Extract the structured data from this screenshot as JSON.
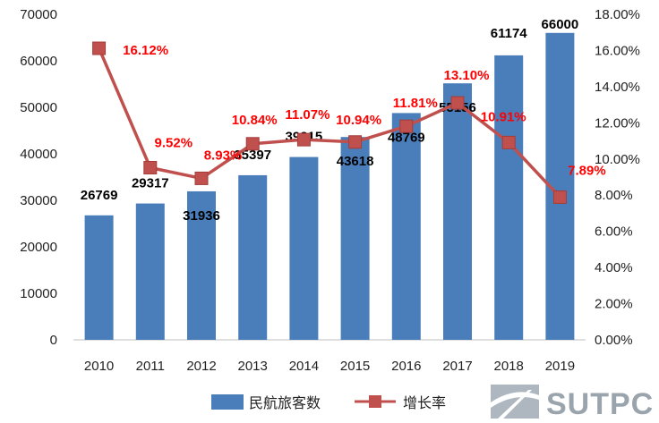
{
  "chart_data": {
    "type": "bar",
    "categories": [
      "2010",
      "2011",
      "2012",
      "2013",
      "2014",
      "2015",
      "2016",
      "2017",
      "2018",
      "2019"
    ],
    "series": [
      {
        "name": "民航旅客数",
        "type": "bar",
        "axis": "left",
        "values": [
          26769,
          29317,
          31936,
          35397,
          39315,
          43618,
          48769,
          55156,
          61174,
          66000
        ],
        "labels": [
          "26769",
          "29317",
          "31936",
          "35397",
          "39315",
          "43618",
          "48769",
          "55156",
          "61174",
          "66000"
        ]
      },
      {
        "name": "增长率",
        "type": "line",
        "axis": "right",
        "values": [
          16.12,
          9.52,
          8.93,
          10.84,
          11.07,
          10.94,
          11.81,
          13.1,
          10.91,
          7.89
        ],
        "labels": [
          "16.12%",
          "9.52%",
          "8.93%",
          "10.84%",
          "11.07%",
          "10.94%",
          "11.81%",
          "13.10%",
          "10.91%",
          "7.89%"
        ]
      }
    ],
    "left_axis": {
      "ylim": [
        0,
        70000
      ],
      "ticks": [
        0,
        10000,
        20000,
        30000,
        40000,
        50000,
        60000,
        70000
      ],
      "tick_labels": [
        "0",
        "10000",
        "20000",
        "30000",
        "40000",
        "50000",
        "60000",
        "70000"
      ]
    },
    "right_axis": {
      "ylim": [
        0,
        18
      ],
      "ticks": [
        0,
        2,
        4,
        6,
        8,
        10,
        12,
        14,
        16,
        18
      ],
      "tick_labels": [
        "0.00%",
        "2.00%",
        "4.00%",
        "6.00%",
        "8.00%",
        "10.00%",
        "12.00%",
        "14.00%",
        "16.00%",
        "18.00%"
      ]
    },
    "grid": false,
    "legend_position": "bottom",
    "colors": {
      "bar": "#4a7ebb",
      "line": "#c0504d",
      "marker": "#c0504d",
      "rate_label": "#ff0000",
      "bar_label": "#000000"
    }
  },
  "watermark": {
    "text": "SUTPC",
    "icon": "sutpc-logo-icon"
  }
}
